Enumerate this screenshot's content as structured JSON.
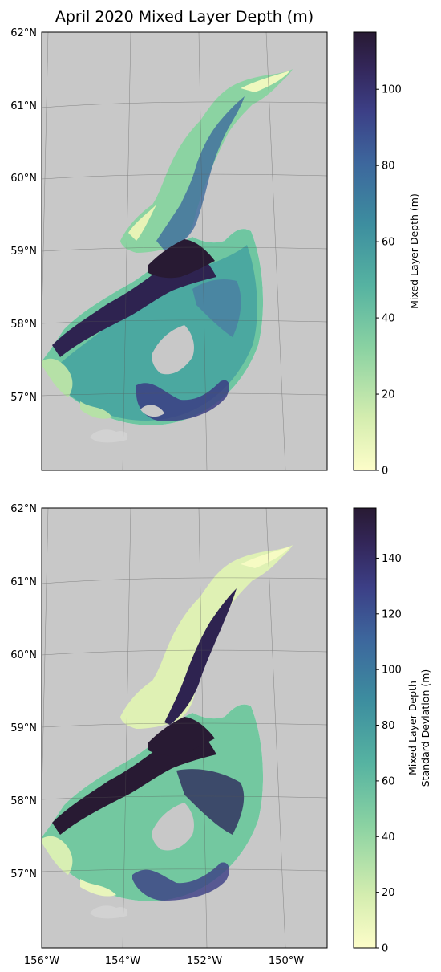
{
  "figure": {
    "title": "April 2020 Mixed Layer Depth (m)"
  },
  "colors": {
    "land": "#c8c8c8",
    "ocean": "#ffffff",
    "gridline": "#555555",
    "colormap_deep": [
      "#fdfdc9",
      "#b5e2a8",
      "#68c3a2",
      "#3d93a0",
      "#3c5d9b",
      "#3b3275",
      "#281a33"
    ]
  },
  "icons": {
    "land": "land-mask-icon",
    "water": "ocean-icon"
  },
  "chart_data": [
    {
      "type": "heatmap",
      "title": "April 2020 Mixed Layer Depth (m)",
      "xlabel": "",
      "ylabel": "",
      "colorbar_label": [
        "Mixed Layer Depth (m)"
      ],
      "colorbar_range": [
        0,
        115
      ],
      "colorbar_ticks": [
        0,
        20,
        40,
        60,
        80,
        100
      ],
      "colorbar_tick_labels": [
        "0",
        "20",
        "40",
        "60",
        "80",
        "100"
      ],
      "lat_tick_labels": [
        "62°N",
        "61°N",
        "60°N",
        "59°N",
        "58°N",
        "57°N"
      ],
      "lat_ticks": [
        62,
        61,
        60,
        59,
        58,
        57
      ],
      "lon_range": [
        -156,
        -149
      ],
      "lat_range": [
        56,
        62
      ],
      "grid": true,
      "description_values": {
        "shelf_min": 0,
        "inlet_max": 115
      }
    },
    {
      "type": "heatmap",
      "title": "",
      "xlabel": "",
      "ylabel": "",
      "colorbar_label": [
        "Mixed Layer Depth",
        "Standard Deviation (m)"
      ],
      "colorbar_range": [
        0,
        158
      ],
      "colorbar_ticks": [
        0,
        20,
        40,
        60,
        80,
        100,
        120,
        140
      ],
      "colorbar_tick_labels": [
        "0",
        "20",
        "40",
        "60",
        "80",
        "100",
        "120",
        "140"
      ],
      "lat_tick_labels": [
        "62°N",
        "61°N",
        "60°N",
        "59°N",
        "58°N",
        "57°N"
      ],
      "lat_ticks": [
        62,
        61,
        60,
        59,
        58,
        57
      ],
      "lon_tick_labels": [
        "156°W",
        "154°W",
        "152°W",
        "150°W"
      ],
      "lon_ticks": [
        -156,
        -154,
        -152,
        -150
      ],
      "lon_range": [
        -156,
        -149
      ],
      "lat_range": [
        56,
        62
      ],
      "grid": true
    }
  ]
}
